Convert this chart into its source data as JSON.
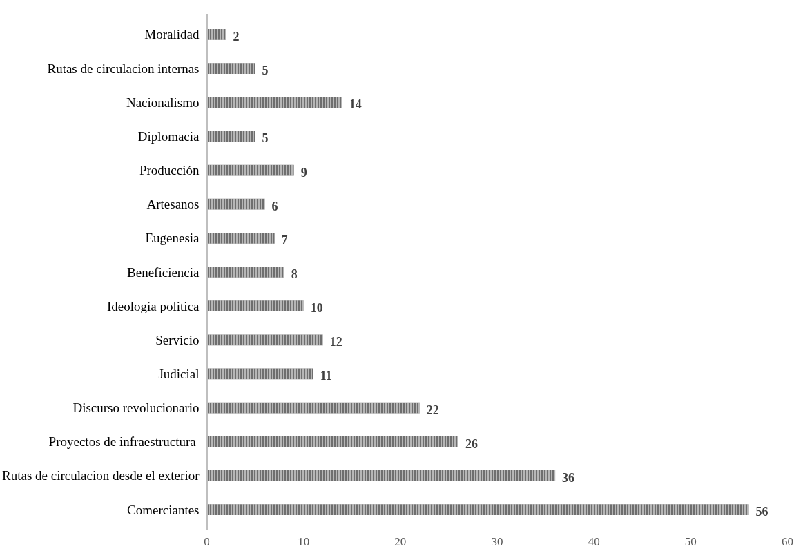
{
  "chart_data": {
    "type": "bar",
    "orientation": "horizontal",
    "categories": [
      "Moralidad",
      "Rutas de circulacion internas",
      "Nacionalismo",
      "Diplomacia",
      "Producción",
      "Artesanos",
      "Eugenesia",
      "Beneficiencia",
      "Ideología politica",
      "Servicio",
      "Judicial",
      "Discurso revolucionario",
      "Proyectos de infraestructura ",
      "Rutas de circulacion desde el exterior",
      "Comerciantes"
    ],
    "values": [
      2,
      5,
      14,
      5,
      9,
      6,
      7,
      8,
      10,
      12,
      11,
      22,
      26,
      36,
      56
    ],
    "color": "#6e6e6e",
    "xlim": [
      0,
      60
    ],
    "xticks": [
      0,
      10,
      20,
      30,
      40,
      50,
      60
    ],
    "grid": false,
    "data_labels": true
  }
}
